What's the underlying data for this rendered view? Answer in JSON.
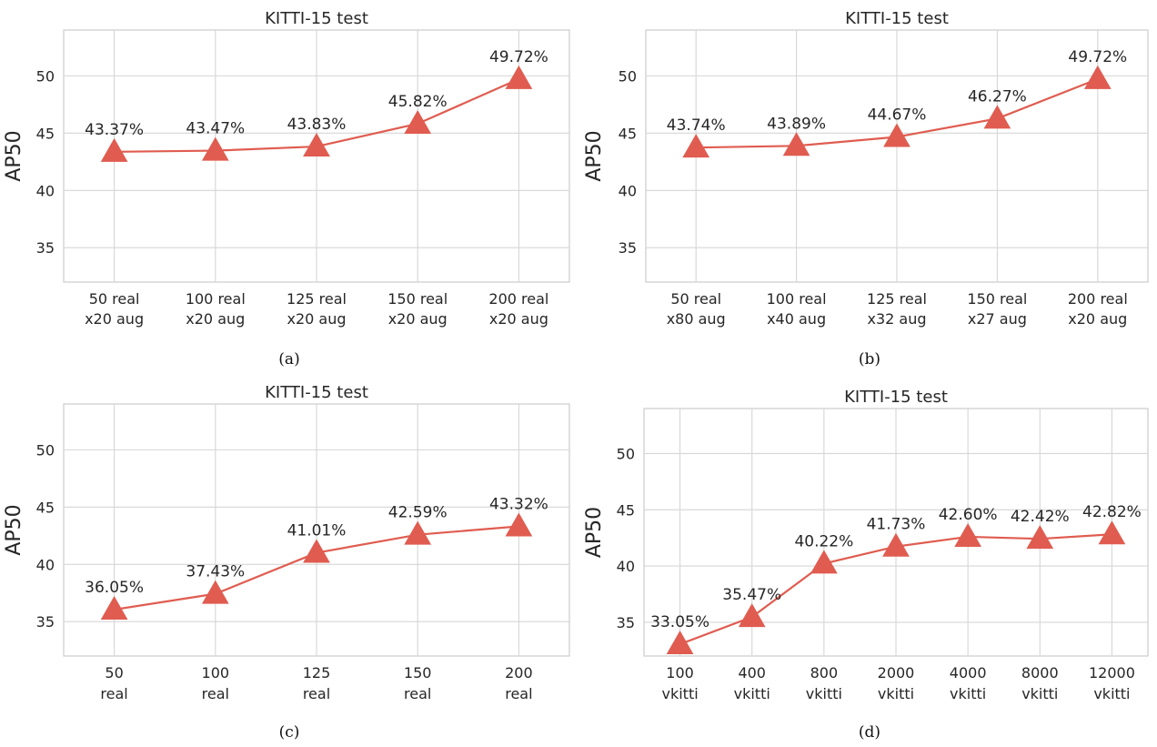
{
  "chart_data": [
    {
      "type": "line",
      "panel": "a",
      "caption": "(a)",
      "title": "KITTI-15 test",
      "ylabel": "AP50",
      "ylim": [
        32,
        54
      ],
      "yticks": [
        35,
        40,
        45,
        50
      ],
      "categories": [
        [
          "50 real",
          "x20 aug"
        ],
        [
          "100 real",
          "x20 aug"
        ],
        [
          "125 real",
          "x20 aug"
        ],
        [
          "150 real",
          "x20 aug"
        ],
        [
          "200 real",
          "x20 aug"
        ]
      ],
      "values": [
        43.37,
        43.47,
        43.83,
        45.82,
        49.72
      ],
      "labels": [
        "43.37%",
        "43.47%",
        "43.83%",
        "45.82%",
        "49.72%"
      ],
      "color": "#e05c50",
      "marker": "triangle"
    },
    {
      "type": "line",
      "panel": "b",
      "caption": "(b)",
      "title": "KITTI-15 test",
      "ylabel": "AP50",
      "ylim": [
        32,
        54
      ],
      "yticks": [
        35,
        40,
        45,
        50
      ],
      "categories": [
        [
          "50 real",
          "x80 aug"
        ],
        [
          "100 real",
          "x40 aug"
        ],
        [
          "125 real",
          "x32 aug"
        ],
        [
          "150 real",
          "x27 aug"
        ],
        [
          "200 real",
          "x20 aug"
        ]
      ],
      "values": [
        43.74,
        43.89,
        44.67,
        46.27,
        49.72
      ],
      "labels": [
        "43.74%",
        "43.89%",
        "44.67%",
        "46.27%",
        "49.72%"
      ],
      "color": "#e05c50",
      "marker": "triangle"
    },
    {
      "type": "line",
      "panel": "c",
      "caption": "(c)",
      "title": "KITTI-15 test",
      "ylabel": "AP50",
      "ylim": [
        32,
        54
      ],
      "yticks": [
        35,
        40,
        45,
        50
      ],
      "categories": [
        [
          "50",
          "real"
        ],
        [
          "100",
          "real"
        ],
        [
          "125",
          "real"
        ],
        [
          "150",
          "real"
        ],
        [
          "200",
          "real"
        ]
      ],
      "values": [
        36.05,
        37.43,
        41.01,
        42.59,
        43.32
      ],
      "labels": [
        "36.05%",
        "37.43%",
        "41.01%",
        "42.59%",
        "43.32%"
      ],
      "color": "#e05c50",
      "marker": "triangle"
    },
    {
      "type": "line",
      "panel": "d",
      "caption": "(d)",
      "title": "KITTI-15 test",
      "ylabel": "AP50",
      "ylim": [
        32,
        54
      ],
      "yticks": [
        35,
        40,
        45,
        50
      ],
      "categories": [
        [
          "100",
          "vkitti"
        ],
        [
          "400",
          "vkitti"
        ],
        [
          "800",
          "vkitti"
        ],
        [
          "2000",
          "vkitti"
        ],
        [
          "4000",
          "vkitti"
        ],
        [
          "8000",
          "vkitti"
        ],
        [
          "12000",
          "vkitti"
        ]
      ],
      "values": [
        33.05,
        35.47,
        40.22,
        41.73,
        42.6,
        42.42,
        42.82
      ],
      "labels": [
        "33.05%",
        "35.47%",
        "40.22%",
        "41.73%",
        "42.60%",
        "42.42%",
        "42.82%"
      ],
      "color": "#e05c50",
      "marker": "triangle"
    }
  ]
}
